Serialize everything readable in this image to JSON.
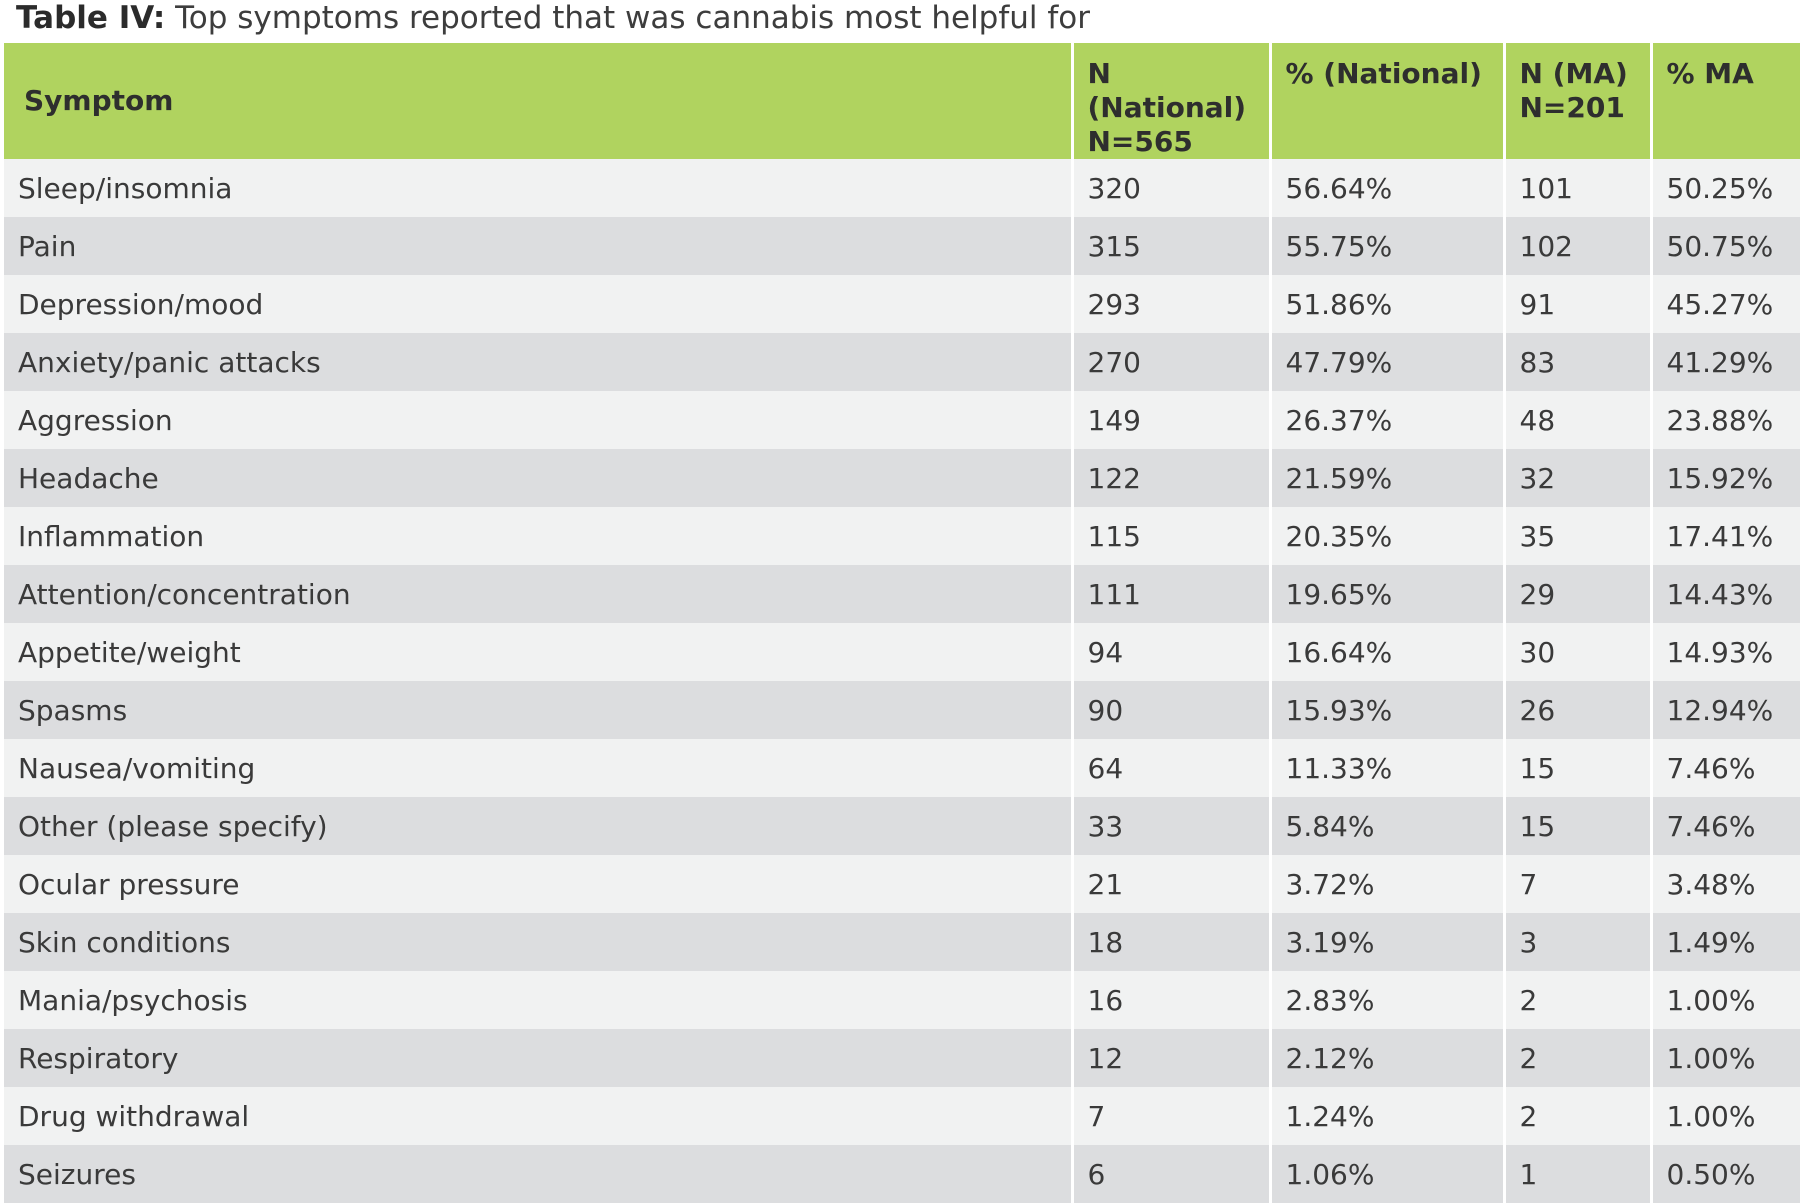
{
  "caption": {
    "label": "Table IV:",
    "text": "Top symptoms reported that was cannabis most helpful for"
  },
  "table": {
    "headers": [
      {
        "line1": "Symptom",
        "line2": ""
      },
      {
        "line1": "N (National)",
        "line2": "N=565"
      },
      {
        "line1": "% (National)",
        "line2": ""
      },
      {
        "line1": "N (MA)",
        "line2": "N=201"
      },
      {
        "line1": "% MA",
        "line2": ""
      }
    ],
    "rows": [
      [
        "Sleep/insomnia",
        "320",
        "56.64%",
        "101",
        "50.25%"
      ],
      [
        "Pain",
        "315",
        "55.75%",
        "102",
        "50.75%"
      ],
      [
        "Depression/mood",
        "293",
        "51.86%",
        "91",
        "45.27%"
      ],
      [
        "Anxiety/panic attacks",
        "270",
        "47.79%",
        "83",
        "41.29%"
      ],
      [
        "Aggression",
        "149",
        "26.37%",
        "48",
        "23.88%"
      ],
      [
        "Headache",
        "122",
        "21.59%",
        "32",
        "15.92%"
      ],
      [
        "Inflammation",
        "115",
        "20.35%",
        "35",
        "17.41%"
      ],
      [
        "Attention/concentration",
        "111",
        "19.65%",
        "29",
        "14.43%"
      ],
      [
        "Appetite/weight",
        "94",
        "16.64%",
        "30",
        "14.93%"
      ],
      [
        "Spasms",
        "90",
        "15.93%",
        "26",
        "12.94%"
      ],
      [
        "Nausea/vomiting",
        "64",
        "11.33%",
        "15",
        "7.46%"
      ],
      [
        "Other (please specify)",
        "33",
        "5.84%",
        "15",
        "7.46%"
      ],
      [
        "Ocular pressure",
        "21",
        "3.72%",
        "7",
        "3.48%"
      ],
      [
        "Skin conditions",
        "18",
        "3.19%",
        "3",
        "1.49%"
      ],
      [
        "Mania/psychosis",
        "16",
        "2.83%",
        "2",
        "1.00%"
      ],
      [
        "Respiratory",
        "12",
        "2.12%",
        "2",
        "1.00%"
      ],
      [
        "Drug withdrawal",
        "7",
        "1.24%",
        "2",
        "1.00%"
      ],
      [
        "Seizures",
        "6",
        "1.06%",
        "1",
        "0.50%"
      ]
    ]
  },
  "colors": {
    "header_bg": "#b0d35f",
    "row_light": "#f1f2f2",
    "row_dark": "#dcdddf"
  }
}
